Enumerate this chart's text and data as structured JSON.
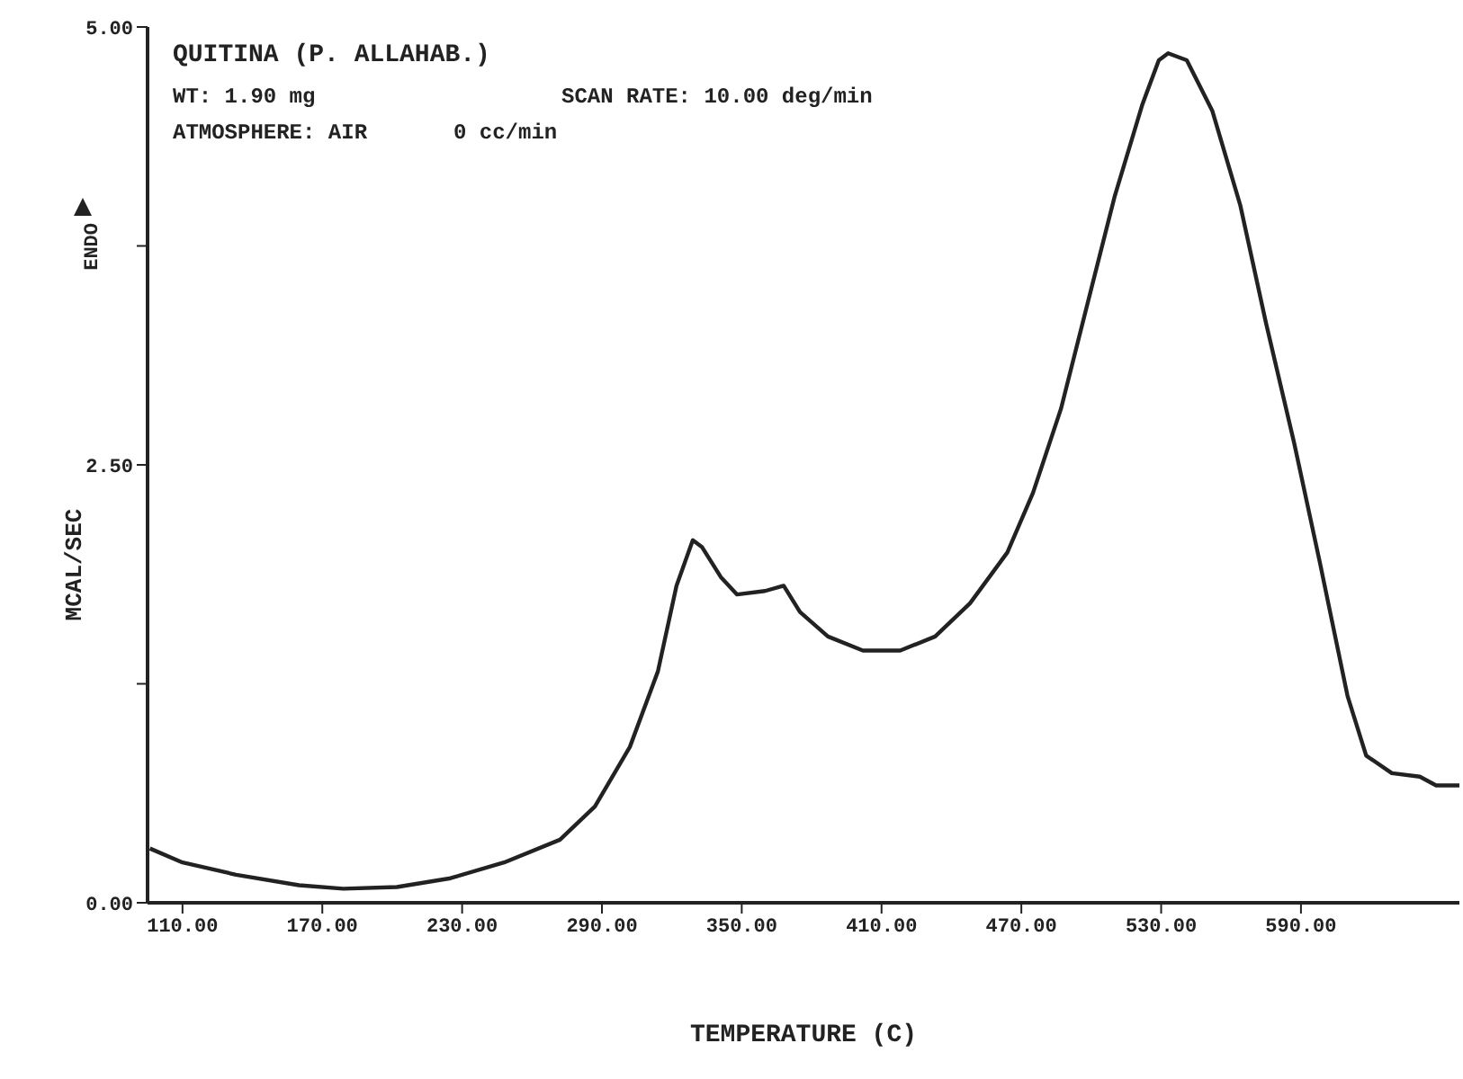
{
  "chart_data": {
    "type": "line",
    "title": "QUITINA (P. ALLAHAB.)",
    "xlabel": "TEMPERATURE (C)",
    "ylabel": "MCAL/SEC",
    "annotations": [
      "WT: 1.90 mg",
      "SCAN RATE: 10.00 deg/min",
      "ATMOSPHERE: AIR",
      "0 cc/min",
      "ENDO"
    ],
    "x": [
      96,
      110,
      133,
      160,
      179,
      202,
      225,
      248,
      272,
      287,
      302,
      314,
      322,
      329,
      333,
      341,
      348,
      360,
      368,
      375,
      387,
      402,
      418,
      433,
      448,
      464,
      475,
      487,
      498,
      510,
      522,
      529,
      533,
      541,
      552,
      564,
      575,
      587,
      598,
      610,
      618,
      629,
      641,
      648,
      658
    ],
    "series": [
      {
        "color": "#222222",
        "values": [
          0.31,
          0.23,
          0.16,
          0.1,
          0.08,
          0.09,
          0.14,
          0.23,
          0.36,
          0.55,
          0.89,
          1.32,
          1.81,
          2.07,
          2.03,
          1.86,
          1.76,
          1.78,
          1.81,
          1.66,
          1.52,
          1.44,
          1.44,
          1.52,
          1.71,
          2.0,
          2.34,
          2.82,
          3.4,
          4.03,
          4.56,
          4.81,
          4.85,
          4.81,
          4.52,
          3.98,
          3.31,
          2.63,
          1.95,
          1.18,
          0.84,
          0.74,
          0.72,
          0.67,
          0.67
        ]
      }
    ],
    "xlim": [
      95,
      658
    ],
    "xticks": [
      {
        "value": 110,
        "label": "110.00"
      },
      {
        "value": 170,
        "label": "170.00"
      },
      {
        "value": 230,
        "label": "230.00"
      },
      {
        "value": 290,
        "label": "290.00"
      },
      {
        "value": 350,
        "label": "350.00"
      },
      {
        "value": 410,
        "label": "410.00"
      },
      {
        "value": 470,
        "label": "470.00"
      },
      {
        "value": 530,
        "label": "530.00"
      },
      {
        "value": 590,
        "label": "590.00"
      }
    ],
    "ylim": [
      0,
      5
    ],
    "yticks": [
      {
        "value": 0,
        "label": "0.00"
      },
      {
        "value": 1.25,
        "label": null
      },
      {
        "value": 2.5,
        "label": "2.50"
      },
      {
        "value": 3.75,
        "label": null
      },
      {
        "value": 5,
        "label": "5.00"
      }
    ],
    "grid": false,
    "marker": "none",
    "line_style": "solid"
  }
}
